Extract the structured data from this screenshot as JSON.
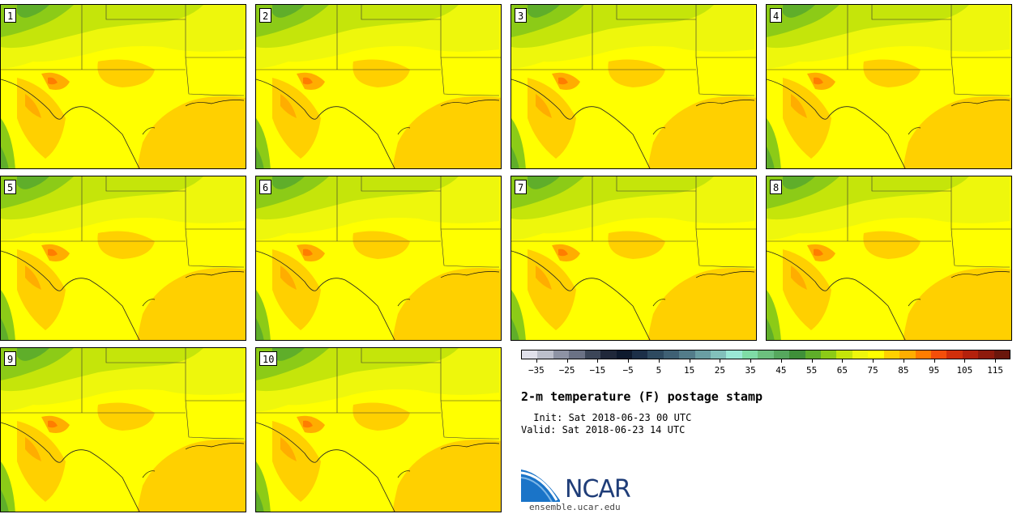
{
  "title": "2-m temperature (F) postage stamp",
  "init_text": " Init: Sat 2018-06-23 00 UTC",
  "valid_text": "Valid: Sat 2018-06-23 14 UTC",
  "logo_text": "NCAR",
  "site_text": "ensemble.ucar.edu",
  "members": [
    "1",
    "2",
    "3",
    "4",
    "5",
    "6",
    "7",
    "8",
    "9",
    "10"
  ],
  "colorbar": {
    "colors": [
      "#e0e0ea",
      "#bcbfcb",
      "#8e93a4",
      "#6b7285",
      "#3c4658",
      "#20283a",
      "#0e1a2e",
      "#1c2f48",
      "#2e4a60",
      "#3f6074",
      "#537c8a",
      "#6a9ea3",
      "#82c0bb",
      "#9ae8d6",
      "#7fdca6",
      "#6cc07e",
      "#56a85e",
      "#3f9039",
      "#5fae2a",
      "#8ccb17",
      "#c5e50a",
      "#eef70c",
      "#ffff00",
      "#ffd000",
      "#ffad00",
      "#ff7d00",
      "#f44e0a",
      "#d22f0b",
      "#b4210c",
      "#8e1a0c",
      "#6a160c"
    ],
    "tick_labels": [
      "-35",
      "-25",
      "-15",
      "-5",
      "5",
      "15",
      "25",
      "35",
      "45",
      "55",
      "65",
      "75",
      "85",
      "95",
      "105",
      "115"
    ],
    "min": -40,
    "max": 120
  }
}
